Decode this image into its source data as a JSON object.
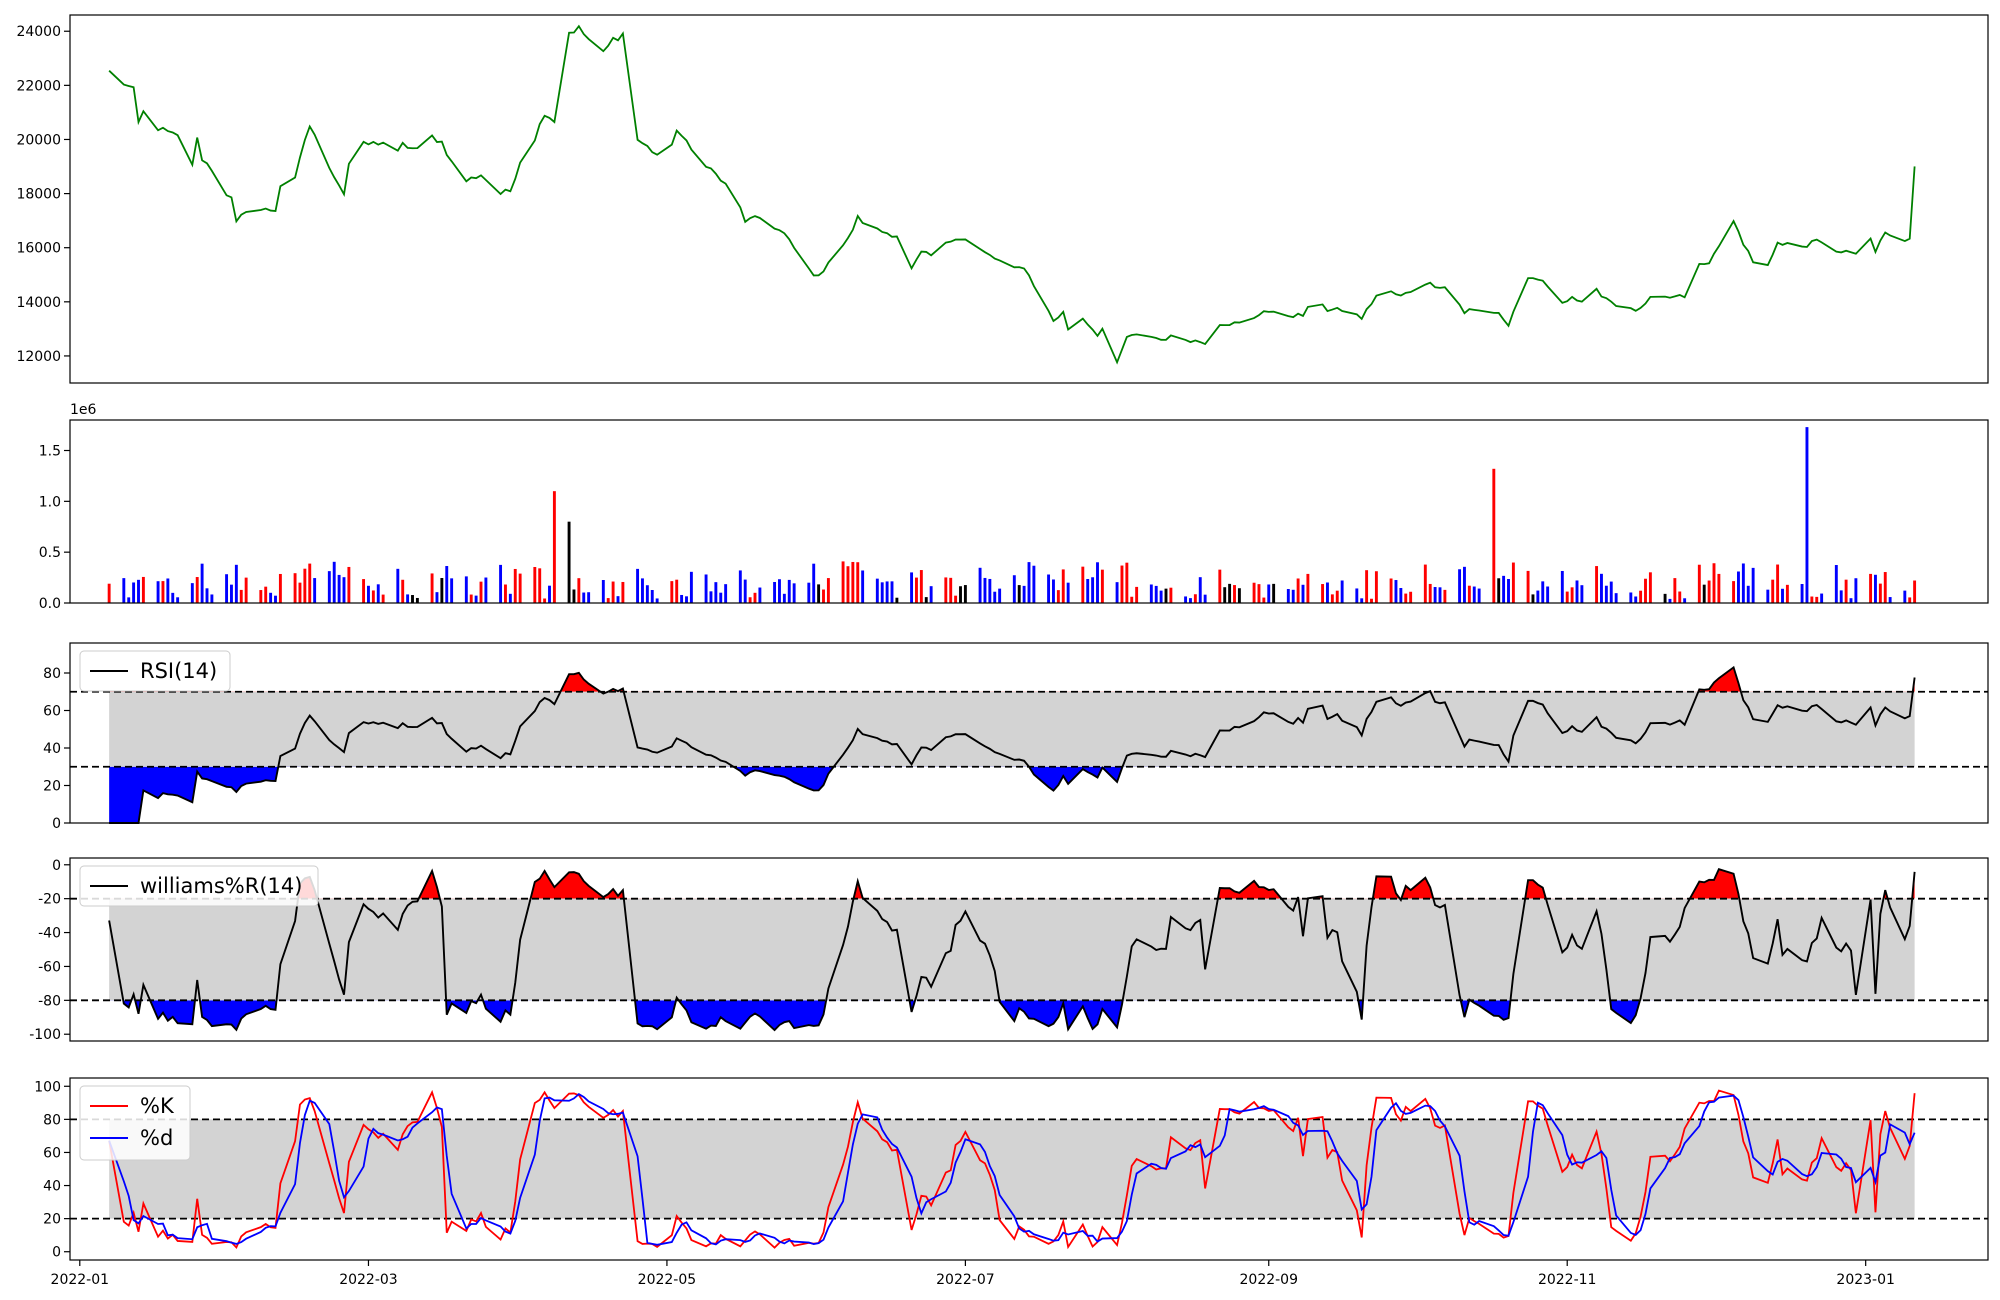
{
  "chart_data": [
    {
      "type": "line",
      "panel": "price",
      "ylim": [
        11000,
        24600
      ],
      "yticks": [
        12000,
        14000,
        16000,
        18000,
        20000,
        22000,
        24000
      ],
      "color": "#008000",
      "x_start": "2022-01-07",
      "x_end": "2023-01-11",
      "anchors": [
        [
          "2022-01-07",
          22500
        ],
        [
          "2022-01-12",
          21800
        ],
        [
          "2022-01-13",
          20600
        ],
        [
          "2022-01-14",
          21000
        ],
        [
          "2022-01-16",
          20500
        ],
        [
          "2022-01-21",
          20100
        ],
        [
          "2022-01-24",
          19100
        ],
        [
          "2022-01-25",
          20000
        ],
        [
          "2022-01-26",
          19300
        ],
        [
          "2022-01-30",
          18500
        ],
        [
          "2022-01-31",
          18000
        ],
        [
          "2022-02-01",
          17800
        ],
        [
          "2022-02-02",
          16900
        ],
        [
          "2022-02-04",
          17400
        ],
        [
          "2022-02-10",
          17400
        ],
        [
          "2022-02-11",
          18300
        ],
        [
          "2022-02-14",
          18500
        ],
        [
          "2022-02-16",
          20000
        ],
        [
          "2022-02-17",
          20500
        ],
        [
          "2022-02-19",
          19700
        ],
        [
          "2022-02-24",
          18000
        ],
        [
          "2022-02-25",
          19100
        ],
        [
          "2022-02-28",
          19800
        ],
        [
          "2022-03-04",
          19900
        ],
        [
          "2022-03-06",
          19200
        ],
        [
          "2022-03-08",
          19800
        ],
        [
          "2022-03-11",
          19600
        ],
        [
          "2022-03-14",
          20100
        ],
        [
          "2022-03-16",
          19900
        ],
        [
          "2022-03-20",
          18400
        ],
        [
          "2022-03-24",
          18700
        ],
        [
          "2022-03-28",
          18000
        ],
        [
          "2022-03-30",
          18100
        ],
        [
          "2022-04-01",
          19200
        ],
        [
          "2022-04-02",
          19100
        ],
        [
          "2022-04-06",
          21000
        ],
        [
          "2022-04-08",
          20700
        ],
        [
          "2022-04-10",
          23900
        ],
        [
          "2022-04-13",
          24100
        ],
        [
          "2022-04-15",
          23700
        ],
        [
          "2022-04-16",
          23900
        ],
        [
          "2022-04-17",
          22900
        ],
        [
          "2022-04-20",
          23700
        ],
        [
          "2022-04-22",
          23900
        ],
        [
          "2022-04-25",
          20000
        ],
        [
          "2022-04-30",
          19300
        ],
        [
          "2022-05-01",
          19000
        ],
        [
          "2022-05-03",
          20400
        ],
        [
          "2022-05-06",
          19600
        ],
        [
          "2022-05-08",
          19300
        ],
        [
          "2022-05-12",
          18500
        ],
        [
          "2022-05-15",
          17900
        ],
        [
          "2022-05-17",
          17000
        ],
        [
          "2022-05-20",
          17100
        ],
        [
          "2022-05-22",
          16900
        ],
        [
          "2022-05-25",
          16500
        ],
        [
          "2022-05-30",
          15200
        ],
        [
          "2022-06-01",
          14900
        ],
        [
          "2022-06-03",
          15500
        ],
        [
          "2022-06-07",
          16300
        ],
        [
          "2022-06-09",
          17100
        ],
        [
          "2022-06-12",
          16700
        ],
        [
          "2022-06-16",
          16500
        ],
        [
          "2022-06-18",
          16400
        ],
        [
          "2022-06-20",
          15200
        ],
        [
          "2022-06-22",
          15800
        ],
        [
          "2022-06-24",
          15700
        ],
        [
          "2022-06-29",
          16400
        ],
        [
          "2022-07-01",
          16300
        ],
        [
          "2022-07-05",
          15800
        ],
        [
          "2022-07-11",
          15200
        ],
        [
          "2022-07-13",
          15300
        ],
        [
          "2022-07-16",
          14300
        ],
        [
          "2022-07-19",
          13300
        ],
        [
          "2022-07-21",
          13600
        ],
        [
          "2022-07-22",
          13000
        ],
        [
          "2022-07-24",
          13600
        ],
        [
          "2022-07-28",
          12800
        ],
        [
          "2022-07-30",
          13200
        ],
        [
          "2022-08-01",
          11700
        ],
        [
          "2022-08-03",
          12700
        ],
        [
          "2022-08-07",
          12800
        ],
        [
          "2022-08-10",
          12600
        ],
        [
          "2022-08-12",
          12700
        ],
        [
          "2022-08-19",
          12500
        ],
        [
          "2022-08-21",
          12700
        ],
        [
          "2022-08-22",
          13200
        ],
        [
          "2022-08-28",
          13200
        ],
        [
          "2022-08-31",
          13700
        ],
        [
          "2022-09-03",
          13500
        ],
        [
          "2022-09-08",
          13500
        ],
        [
          "2022-09-11",
          14200
        ],
        [
          "2022-09-13",
          13700
        ],
        [
          "2022-09-17",
          13700
        ],
        [
          "2022-09-20",
          13400
        ],
        [
          "2022-09-24",
          14500
        ],
        [
          "2022-09-28",
          14200
        ],
        [
          "2022-10-03",
          14700
        ],
        [
          "2022-10-08",
          14500
        ],
        [
          "2022-10-11",
          13600
        ],
        [
          "2022-10-12",
          13700
        ],
        [
          "2022-10-18",
          13600
        ],
        [
          "2022-10-20",
          13100
        ],
        [
          "2022-10-23",
          14800
        ],
        [
          "2022-10-27",
          14800
        ],
        [
          "2022-10-30",
          13900
        ],
        [
          "2022-11-02",
          14200
        ],
        [
          "2022-11-05",
          13800
        ],
        [
          "2022-11-07",
          14400
        ],
        [
          "2022-11-11",
          13900
        ],
        [
          "2022-11-14",
          13700
        ],
        [
          "2022-11-16",
          13700
        ],
        [
          "2022-11-18",
          14100
        ],
        [
          "2022-11-25",
          14200
        ],
        [
          "2022-11-26",
          15300
        ],
        [
          "2022-11-30",
          15400
        ],
        [
          "2022-12-03",
          16500
        ],
        [
          "2022-12-05",
          16900
        ],
        [
          "2022-12-09",
          15500
        ],
        [
          "2022-12-11",
          14900
        ],
        [
          "2022-12-14",
          16100
        ],
        [
          "2022-12-20",
          16100
        ],
        [
          "2022-12-21",
          16300
        ],
        [
          "2022-12-26",
          15900
        ],
        [
          "2022-12-31",
          15700
        ],
        [
          "2023-01-02",
          16300
        ],
        [
          "2023-01-03",
          15900
        ],
        [
          "2023-01-05",
          16500
        ],
        [
          "2023-01-08",
          16200
        ],
        [
          "2023-01-10",
          16400
        ],
        [
          "2023-01-11",
          19100
        ]
      ]
    },
    {
      "type": "bar",
      "panel": "volume",
      "ylim": [
        0,
        1800000
      ],
      "yticks": [
        0,
        500000,
        1000000,
        1500000
      ],
      "ytick_labels": [
        "0.0",
        "0.5",
        "1.0",
        "1.5"
      ],
      "offset_label": "1e6",
      "colors": {
        "up": "#ff0000",
        "down": "#0000ff",
        "flat": "#000000"
      },
      "spikes": [
        [
          "2022-04-09",
          1100000,
          "up"
        ],
        [
          "2022-04-10",
          800000,
          "flat"
        ],
        [
          "2022-10-16",
          1320000,
          "up"
        ],
        [
          "2022-12-20",
          1730000,
          "down"
        ]
      ]
    },
    {
      "type": "line",
      "panel": "rsi",
      "ylim": [
        0,
        96
      ],
      "yticks": [
        0,
        20,
        40,
        60,
        80
      ],
      "hlines": [
        30,
        70
      ],
      "legend": [
        "RSI(14)"
      ],
      "upper_fill": "#ff0000",
      "lower_fill": "#0000ff",
      "band_fill": "#d3d3d3"
    },
    {
      "type": "line",
      "panel": "williams",
      "ylim": [
        -104,
        4
      ],
      "yticks": [
        -100,
        -80,
        -60,
        -40,
        -20,
        0
      ],
      "hlines": [
        -20,
        -80
      ],
      "legend": [
        "williams%R(14)"
      ],
      "upper_fill": "#ff0000",
      "lower_fill": "#0000ff",
      "band_fill": "#d3d3d3"
    },
    {
      "type": "line",
      "panel": "stochastic",
      "ylim": [
        -5,
        105
      ],
      "yticks": [
        0,
        20,
        40,
        60,
        80,
        100
      ],
      "hlines": [
        20,
        80
      ],
      "legend": [
        "%K",
        "%d"
      ],
      "series_colors": [
        "#ff0000",
        "#0000ff"
      ],
      "band_fill": "#d3d3d3"
    }
  ],
  "x_axis": {
    "range": [
      "2021-12-30",
      "2023-01-26"
    ],
    "ticks": [
      "2022-01-01",
      "2022-03-01",
      "2022-05-01",
      "2022-07-01",
      "2022-09-01",
      "2022-11-01",
      "2023-01-01"
    ],
    "tick_labels": [
      "2022-01",
      "2022-03",
      "2022-05",
      "2022-07",
      "2022-09",
      "2022-11",
      "2023-01"
    ]
  }
}
